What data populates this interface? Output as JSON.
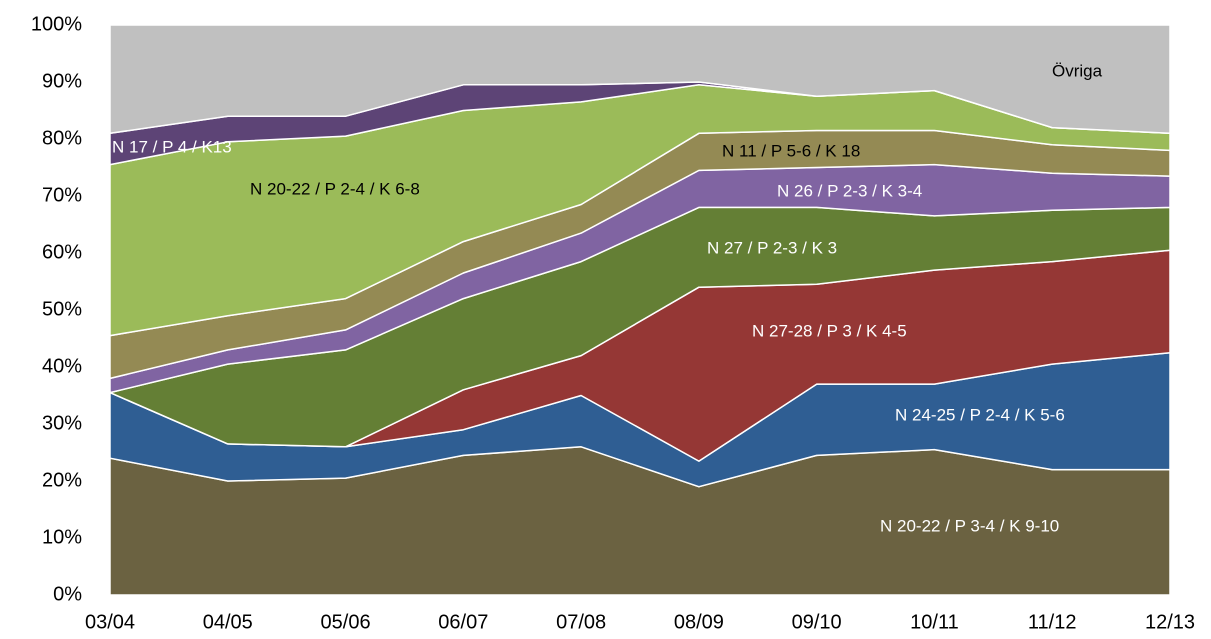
{
  "chart_data": {
    "type": "stacked_area",
    "categories": [
      "03/04",
      "04/05",
      "05/06",
      "06/07",
      "07/08",
      "08/09",
      "09/10",
      "10/11",
      "11/12",
      "12/13"
    ],
    "series": [
      {
        "name": "N 20-22 / P 3-4 / K 9-10",
        "color": "#6b6241",
        "values": [
          24,
          20,
          20.5,
          24.5,
          26,
          19,
          24.5,
          25.5,
          22,
          22
        ]
      },
      {
        "name": "N 24-25 / P 2-4 / K 5-6",
        "color": "#2f5e93",
        "values": [
          11.5,
          6.5,
          5.5,
          4.5,
          9,
          4.5,
          12.5,
          11.5,
          18.5,
          20.5
        ]
      },
      {
        "name": "N 27-28 / P 3 / K 4-5",
        "color": "#953735",
        "values": [
          0,
          0,
          0,
          7,
          7,
          30.5,
          17.5,
          20,
          18,
          18
        ]
      },
      {
        "name": "N 27 / P 2-3 / K 3",
        "color": "#647f35",
        "values": [
          0,
          14,
          17,
          16,
          16.5,
          14,
          13.5,
          9.5,
          9,
          7.5
        ]
      },
      {
        "name": "N 26 / P 2-3 / K 3-4",
        "color": "#8064a2",
        "values": [
          2.5,
          2.5,
          3.5,
          4.5,
          5,
          6.5,
          7,
          9,
          6.5,
          5.5
        ]
      },
      {
        "name": "N 11 / P 5-6 / K 18",
        "color": "#948a54",
        "values": [
          7.5,
          6,
          5.5,
          5.5,
          5,
          6.5,
          6.5,
          6,
          5,
          4.5
        ]
      },
      {
        "name": "N 20-22 / P 2-4 / K 6-8",
        "color": "#9bbb59",
        "values": [
          30,
          30.5,
          28.5,
          23,
          18,
          8.5,
          6,
          7,
          3,
          3
        ]
      },
      {
        "name": "N 17 / P 4 / K13",
        "color": "#5d4476",
        "values": [
          5.5,
          4.5,
          3.5,
          4.5,
          3,
          0.5,
          0,
          0,
          0,
          0
        ]
      },
      {
        "name": "Övriga",
        "color": "#c0c0c0",
        "values": [
          19,
          16,
          16,
          10.5,
          10.5,
          10,
          12.5,
          11.5,
          18,
          19
        ]
      }
    ],
    "ylim": [
      0,
      100
    ],
    "yticks": [
      {
        "value": 0,
        "label": "0%"
      },
      {
        "value": 10,
        "label": "10%"
      },
      {
        "value": 20,
        "label": "20%"
      },
      {
        "value": 30,
        "label": "30%"
      },
      {
        "value": 40,
        "label": "40%"
      },
      {
        "value": 50,
        "label": "50%"
      },
      {
        "value": 60,
        "label": "60%"
      },
      {
        "value": 70,
        "label": "70%"
      },
      {
        "value": 80,
        "label": "80%"
      },
      {
        "value": 90,
        "label": "90%"
      },
      {
        "value": 100,
        "label": "100%"
      }
    ],
    "grid": false
  }
}
